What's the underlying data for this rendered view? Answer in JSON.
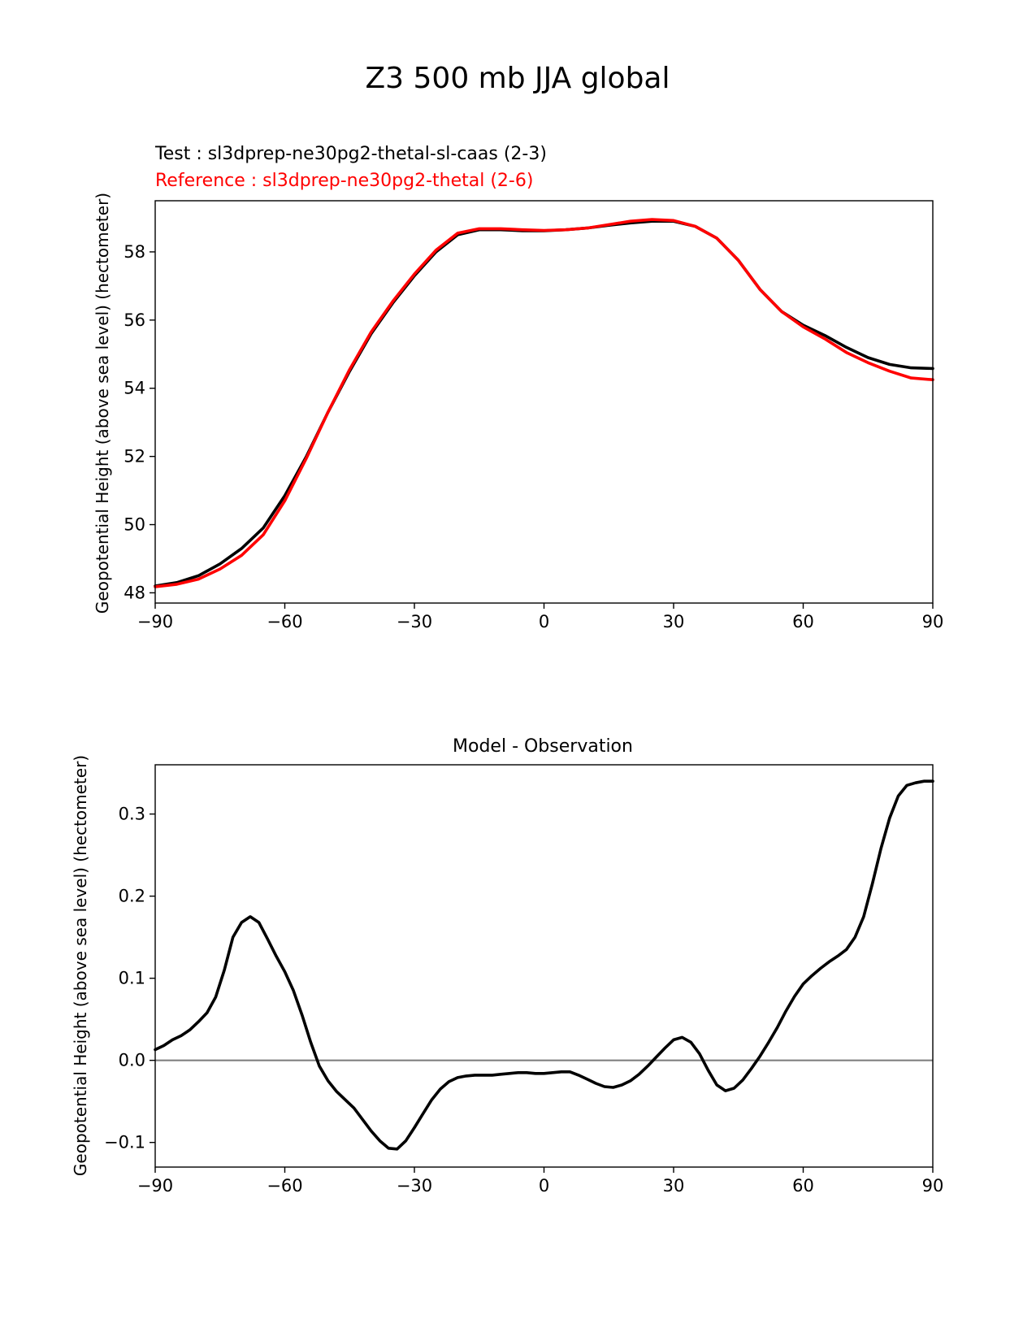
{
  "figure": {
    "title": "Z3 500 mb JJA global"
  },
  "chart_data": [
    {
      "type": "line",
      "title": "",
      "legend_text": [
        {
          "text": "Test : sl3dprep-ne30pg2-thetal-sl-caas (2-3)",
          "color": "#000000"
        },
        {
          "text": "Reference : sl3dprep-ne30pg2-thetal (2-6)",
          "color": "#ff0000"
        }
      ],
      "xlabel": "",
      "ylabel": "Geopotential Height (above sea level) (hectometer)",
      "xlim": [
        -90,
        90
      ],
      "ylim": [
        47.7,
        59.5
      ],
      "xticks": [
        -90,
        -60,
        -30,
        0,
        30,
        60,
        90
      ],
      "xtick_labels": [
        "−90",
        "−60",
        "−30",
        "0",
        "30",
        "60",
        "90"
      ],
      "yticks": [
        48,
        50,
        52,
        54,
        56,
        58
      ],
      "ytick_labels": [
        "48",
        "50",
        "52",
        "54",
        "56",
        "58"
      ],
      "grid": false,
      "x": [
        -90,
        -85,
        -80,
        -75,
        -70,
        -65,
        -60,
        -55,
        -50,
        -45,
        -40,
        -35,
        -30,
        -25,
        -20,
        -15,
        -10,
        -5,
        0,
        5,
        10,
        15,
        20,
        25,
        30,
        35,
        40,
        45,
        50,
        55,
        60,
        65,
        70,
        75,
        80,
        85,
        90
      ],
      "series": [
        {
          "name": "Test : sl3dprep-ne30pg2-thetal-sl-caas (2-3)",
          "color": "#000000",
          "values": [
            48.2,
            48.3,
            48.5,
            48.85,
            49.3,
            49.9,
            50.85,
            52.0,
            53.3,
            54.5,
            55.6,
            56.5,
            57.3,
            58.0,
            58.5,
            58.65,
            58.65,
            58.62,
            58.62,
            58.65,
            58.7,
            58.78,
            58.85,
            58.9,
            58.9,
            58.75,
            58.4,
            57.75,
            56.9,
            56.25,
            55.85,
            55.55,
            55.2,
            54.9,
            54.7,
            54.6,
            54.58
          ]
        },
        {
          "name": "Reference : sl3dprep-ne30pg2-thetal (2-6)",
          "color": "#ff0000",
          "values": [
            48.18,
            48.25,
            48.4,
            48.7,
            49.1,
            49.7,
            50.7,
            51.95,
            53.3,
            54.55,
            55.65,
            56.55,
            57.35,
            58.05,
            58.55,
            58.68,
            58.68,
            58.65,
            58.63,
            58.65,
            58.7,
            58.8,
            58.9,
            58.95,
            58.92,
            58.75,
            58.4,
            57.75,
            56.9,
            56.25,
            55.8,
            55.45,
            55.05,
            54.75,
            54.5,
            54.3,
            54.25
          ]
        }
      ]
    },
    {
      "type": "line",
      "title": "Model - Observation",
      "xlabel": "",
      "ylabel": "Geopotential Height (above sea level) (hectometer)",
      "xlim": [
        -90,
        90
      ],
      "ylim": [
        -0.13,
        0.36
      ],
      "xticks": [
        -90,
        -60,
        -30,
        0,
        30,
        60,
        90
      ],
      "xtick_labels": [
        "−90",
        "−60",
        "−30",
        "0",
        "30",
        "60",
        "90"
      ],
      "yticks": [
        -0.1,
        0.0,
        0.1,
        0.2,
        0.3
      ],
      "ytick_labels": [
        "−0.1",
        "0.0",
        "0.1",
        "0.2",
        "0.3"
      ],
      "grid": false,
      "zero_line": {
        "y": 0.0,
        "color": "#808080"
      },
      "x": [
        -90,
        -88,
        -86,
        -84,
        -82,
        -80,
        -78,
        -76,
        -74,
        -72,
        -70,
        -68,
        -66,
        -64,
        -62,
        -60,
        -58,
        -56,
        -54,
        -52,
        -50,
        -48,
        -46,
        -44,
        -42,
        -40,
        -38,
        -36,
        -34,
        -32,
        -30,
        -28,
        -26,
        -24,
        -22,
        -20,
        -18,
        -16,
        -14,
        -12,
        -10,
        -8,
        -6,
        -4,
        -2,
        0,
        2,
        4,
        6,
        8,
        10,
        12,
        14,
        16,
        18,
        20,
        22,
        24,
        26,
        28,
        30,
        32,
        34,
        36,
        38,
        40,
        42,
        44,
        46,
        48,
        50,
        52,
        54,
        56,
        58,
        60,
        62,
        64,
        66,
        68,
        70,
        72,
        74,
        76,
        78,
        80,
        82,
        84,
        86,
        88,
        90
      ],
      "series": [
        {
          "name": "",
          "color": "#000000",
          "values": [
            0.013,
            0.018,
            0.025,
            0.03,
            0.037,
            0.047,
            0.058,
            0.077,
            0.11,
            0.15,
            0.168,
            0.175,
            0.168,
            0.148,
            0.127,
            0.108,
            0.085,
            0.055,
            0.022,
            -0.007,
            -0.025,
            -0.038,
            -0.048,
            -0.058,
            -0.072,
            -0.086,
            -0.098,
            -0.107,
            -0.108,
            -0.098,
            -0.082,
            -0.065,
            -0.048,
            -0.035,
            -0.026,
            -0.021,
            -0.019,
            -0.018,
            -0.018,
            -0.018,
            -0.017,
            -0.016,
            -0.015,
            -0.015,
            -0.016,
            -0.016,
            -0.015,
            -0.014,
            -0.014,
            -0.018,
            -0.023,
            -0.028,
            -0.032,
            -0.033,
            -0.03,
            -0.025,
            -0.017,
            -0.007,
            0.004,
            0.015,
            0.025,
            0.028,
            0.022,
            0.008,
            -0.012,
            -0.03,
            -0.037,
            -0.034,
            -0.024,
            -0.01,
            0.005,
            0.022,
            0.04,
            0.06,
            0.078,
            0.093,
            0.103,
            0.112,
            0.12,
            0.127,
            0.135,
            0.15,
            0.175,
            0.215,
            0.258,
            0.295,
            0.322,
            0.335,
            0.338,
            0.34,
            0.34
          ]
        }
      ]
    }
  ]
}
